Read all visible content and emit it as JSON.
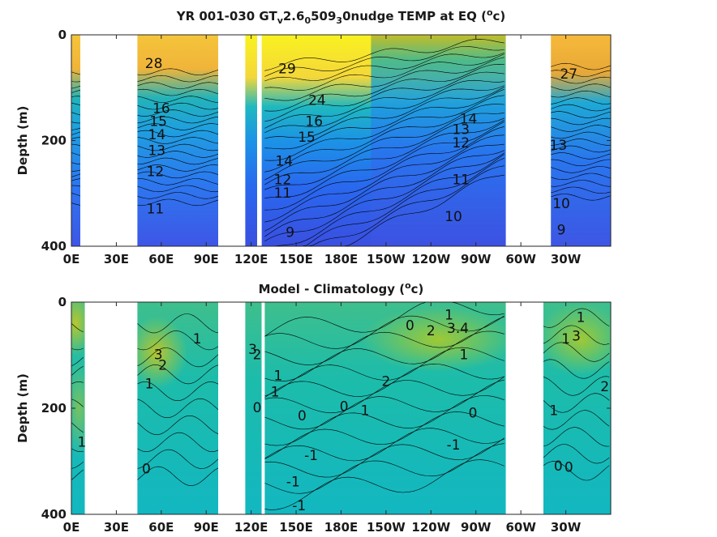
{
  "figure": {
    "background": "#ffffff",
    "colormap": [
      "#3e26a8",
      "#2a6ef0",
      "#1aa7e6",
      "#12beb9",
      "#47c771",
      "#a8c52f",
      "#f0ba37",
      "#f9fb15"
    ]
  },
  "chart_data": [
    {
      "type": "heatmap",
      "title_main": "YR 001-030 GT",
      "title_sub1": "v",
      "title_mid1": "2.6",
      "title_sub2": "0",
      "title_mid2": "509",
      "title_sub3": "3",
      "title_tail": "0nudge TEMP at EQ (",
      "title_sup": "o",
      "title_end": "c)",
      "ylabel": "Depth (m)",
      "xlabel": "",
      "xticks": [
        "0E",
        "30E",
        "60E",
        "90E",
        "120E",
        "150E",
        "180E",
        "150W",
        "120W",
        "90W",
        "60W",
        "30W"
      ],
      "yticks": [
        "0",
        "200",
        "400"
      ],
      "xlim": [
        0,
        360
      ],
      "ylim": [
        0,
        400
      ],
      "masked_longitude_ranges": [
        [
          6,
          44
        ],
        [
          98,
          116
        ],
        [
          124,
          127
        ],
        [
          290,
          320
        ]
      ],
      "contour_labels": [
        {
          "text": "28",
          "lon": 55,
          "depth": 55
        },
        {
          "text": "16",
          "lon": 60,
          "depth": 140
        },
        {
          "text": "15",
          "lon": 58,
          "depth": 165
        },
        {
          "text": "14",
          "lon": 57,
          "depth": 190
        },
        {
          "text": "13",
          "lon": 57,
          "depth": 220
        },
        {
          "text": "12",
          "lon": 56,
          "depth": 260
        },
        {
          "text": "11",
          "lon": 56,
          "depth": 330
        },
        {
          "text": "29",
          "lon": 144,
          "depth": 65
        },
        {
          "text": "24",
          "lon": 164,
          "depth": 125
        },
        {
          "text": "16",
          "lon": 162,
          "depth": 165
        },
        {
          "text": "15",
          "lon": 157,
          "depth": 195
        },
        {
          "text": "14",
          "lon": 142,
          "depth": 240
        },
        {
          "text": "12",
          "lon": 141,
          "depth": 275
        },
        {
          "text": "11",
          "lon": 141,
          "depth": 300
        },
        {
          "text": "9",
          "lon": 146,
          "depth": 375
        },
        {
          "text": "14",
          "lon": 265,
          "depth": 160
        },
        {
          "text": "13",
          "lon": 260,
          "depth": 180
        },
        {
          "text": "12",
          "lon": 260,
          "depth": 205
        },
        {
          "text": "11",
          "lon": 260,
          "depth": 275
        },
        {
          "text": "10",
          "lon": 255,
          "depth": 345
        },
        {
          "text": "27",
          "lon": 332,
          "depth": 75
        },
        {
          "text": "13",
          "lon": 325,
          "depth": 210
        },
        {
          "text": "10",
          "lon": 327,
          "depth": 320
        },
        {
          "text": "9",
          "lon": 327,
          "depth": 370
        }
      ]
    },
    {
      "type": "heatmap",
      "title_main": "Model - Climatology (",
      "title_sup": "o",
      "title_end": "c)",
      "ylabel": "Depth (m)",
      "xlabel": "",
      "xticks": [
        "0E",
        "30E",
        "60E",
        "90E",
        "120E",
        "150E",
        "180E",
        "150W",
        "120W",
        "90W",
        "60W",
        "30W"
      ],
      "yticks": [
        "0",
        "200",
        "400"
      ],
      "xlim": [
        0,
        360
      ],
      "ylim": [
        0,
        400
      ],
      "masked_longitude_ranges": [
        [
          9,
          44
        ],
        [
          98,
          116
        ],
        [
          127,
          129
        ],
        [
          290,
          315
        ]
      ],
      "contour_labels": [
        {
          "text": "1",
          "lon": 84,
          "depth": 70
        },
        {
          "text": "3",
          "lon": 58,
          "depth": 100
        },
        {
          "text": "2",
          "lon": 61,
          "depth": 120
        },
        {
          "text": "1",
          "lon": 52,
          "depth": 155
        },
        {
          "text": "1",
          "lon": 7,
          "depth": 265
        },
        {
          "text": "0",
          "lon": 50,
          "depth": 315
        },
        {
          "text": "3",
          "lon": 121,
          "depth": 90
        },
        {
          "text": "2",
          "lon": 124,
          "depth": 100
        },
        {
          "text": "1",
          "lon": 138,
          "depth": 140
        },
        {
          "text": "1",
          "lon": 136,
          "depth": 170
        },
        {
          "text": "0",
          "lon": 124,
          "depth": 200
        },
        {
          "text": "0",
          "lon": 154,
          "depth": 215
        },
        {
          "text": "-1",
          "lon": 160,
          "depth": 290
        },
        {
          "text": "-1",
          "lon": 148,
          "depth": 340
        },
        {
          "text": "-1",
          "lon": 152,
          "depth": 385
        },
        {
          "text": "0",
          "lon": 226,
          "depth": 45
        },
        {
          "text": "1",
          "lon": 252,
          "depth": 25
        },
        {
          "text": "2",
          "lon": 240,
          "depth": 55
        },
        {
          "text": "3.4",
          "lon": 258,
          "depth": 50
        },
        {
          "text": "1",
          "lon": 262,
          "depth": 100
        },
        {
          "text": "2",
          "lon": 210,
          "depth": 150
        },
        {
          "text": "1",
          "lon": 196,
          "depth": 205
        },
        {
          "text": "0",
          "lon": 182,
          "depth": 198
        },
        {
          "text": "0",
          "lon": 268,
          "depth": 210
        },
        {
          "text": "-1",
          "lon": 255,
          "depth": 270
        },
        {
          "text": "1",
          "lon": 340,
          "depth": 30
        },
        {
          "text": "1",
          "lon": 330,
          "depth": 70
        },
        {
          "text": "3",
          "lon": 337,
          "depth": 65
        },
        {
          "text": "2",
          "lon": 356,
          "depth": 160
        },
        {
          "text": "1",
          "lon": 322,
          "depth": 205
        },
        {
          "text": "0",
          "lon": 325,
          "depth": 310
        },
        {
          "text": "0",
          "lon": 332,
          "depth": 312
        }
      ]
    }
  ]
}
